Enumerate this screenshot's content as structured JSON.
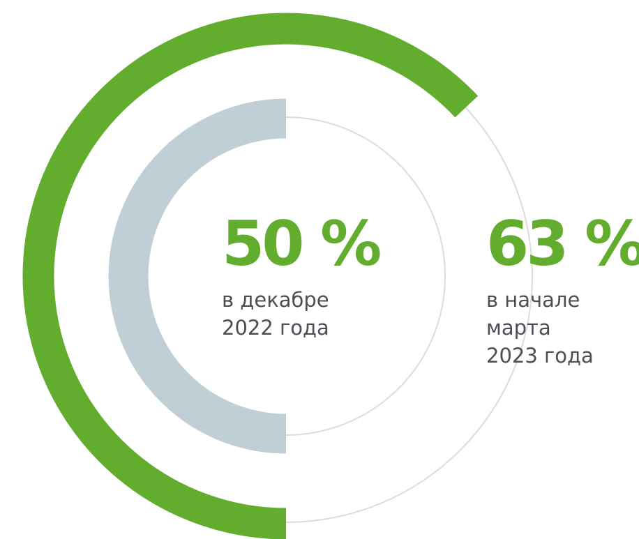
{
  "chart_data": {
    "type": "radial",
    "series": [
      {
        "values": [
          63
        ],
        "value_labels": [
          "63 %"
        ],
        "labels": [
          "в начале",
          "марта",
          "2023 года"
        ],
        "color": "#62ad2e"
      },
      {
        "values": [
          50
        ],
        "value_labels": [
          "50 %"
        ],
        "labels": [
          "в декабре",
          "2022 года"
        ],
        "color": "#c0ced6"
      }
    ],
    "max": 100,
    "track_color": "#dcdcdc"
  }
}
